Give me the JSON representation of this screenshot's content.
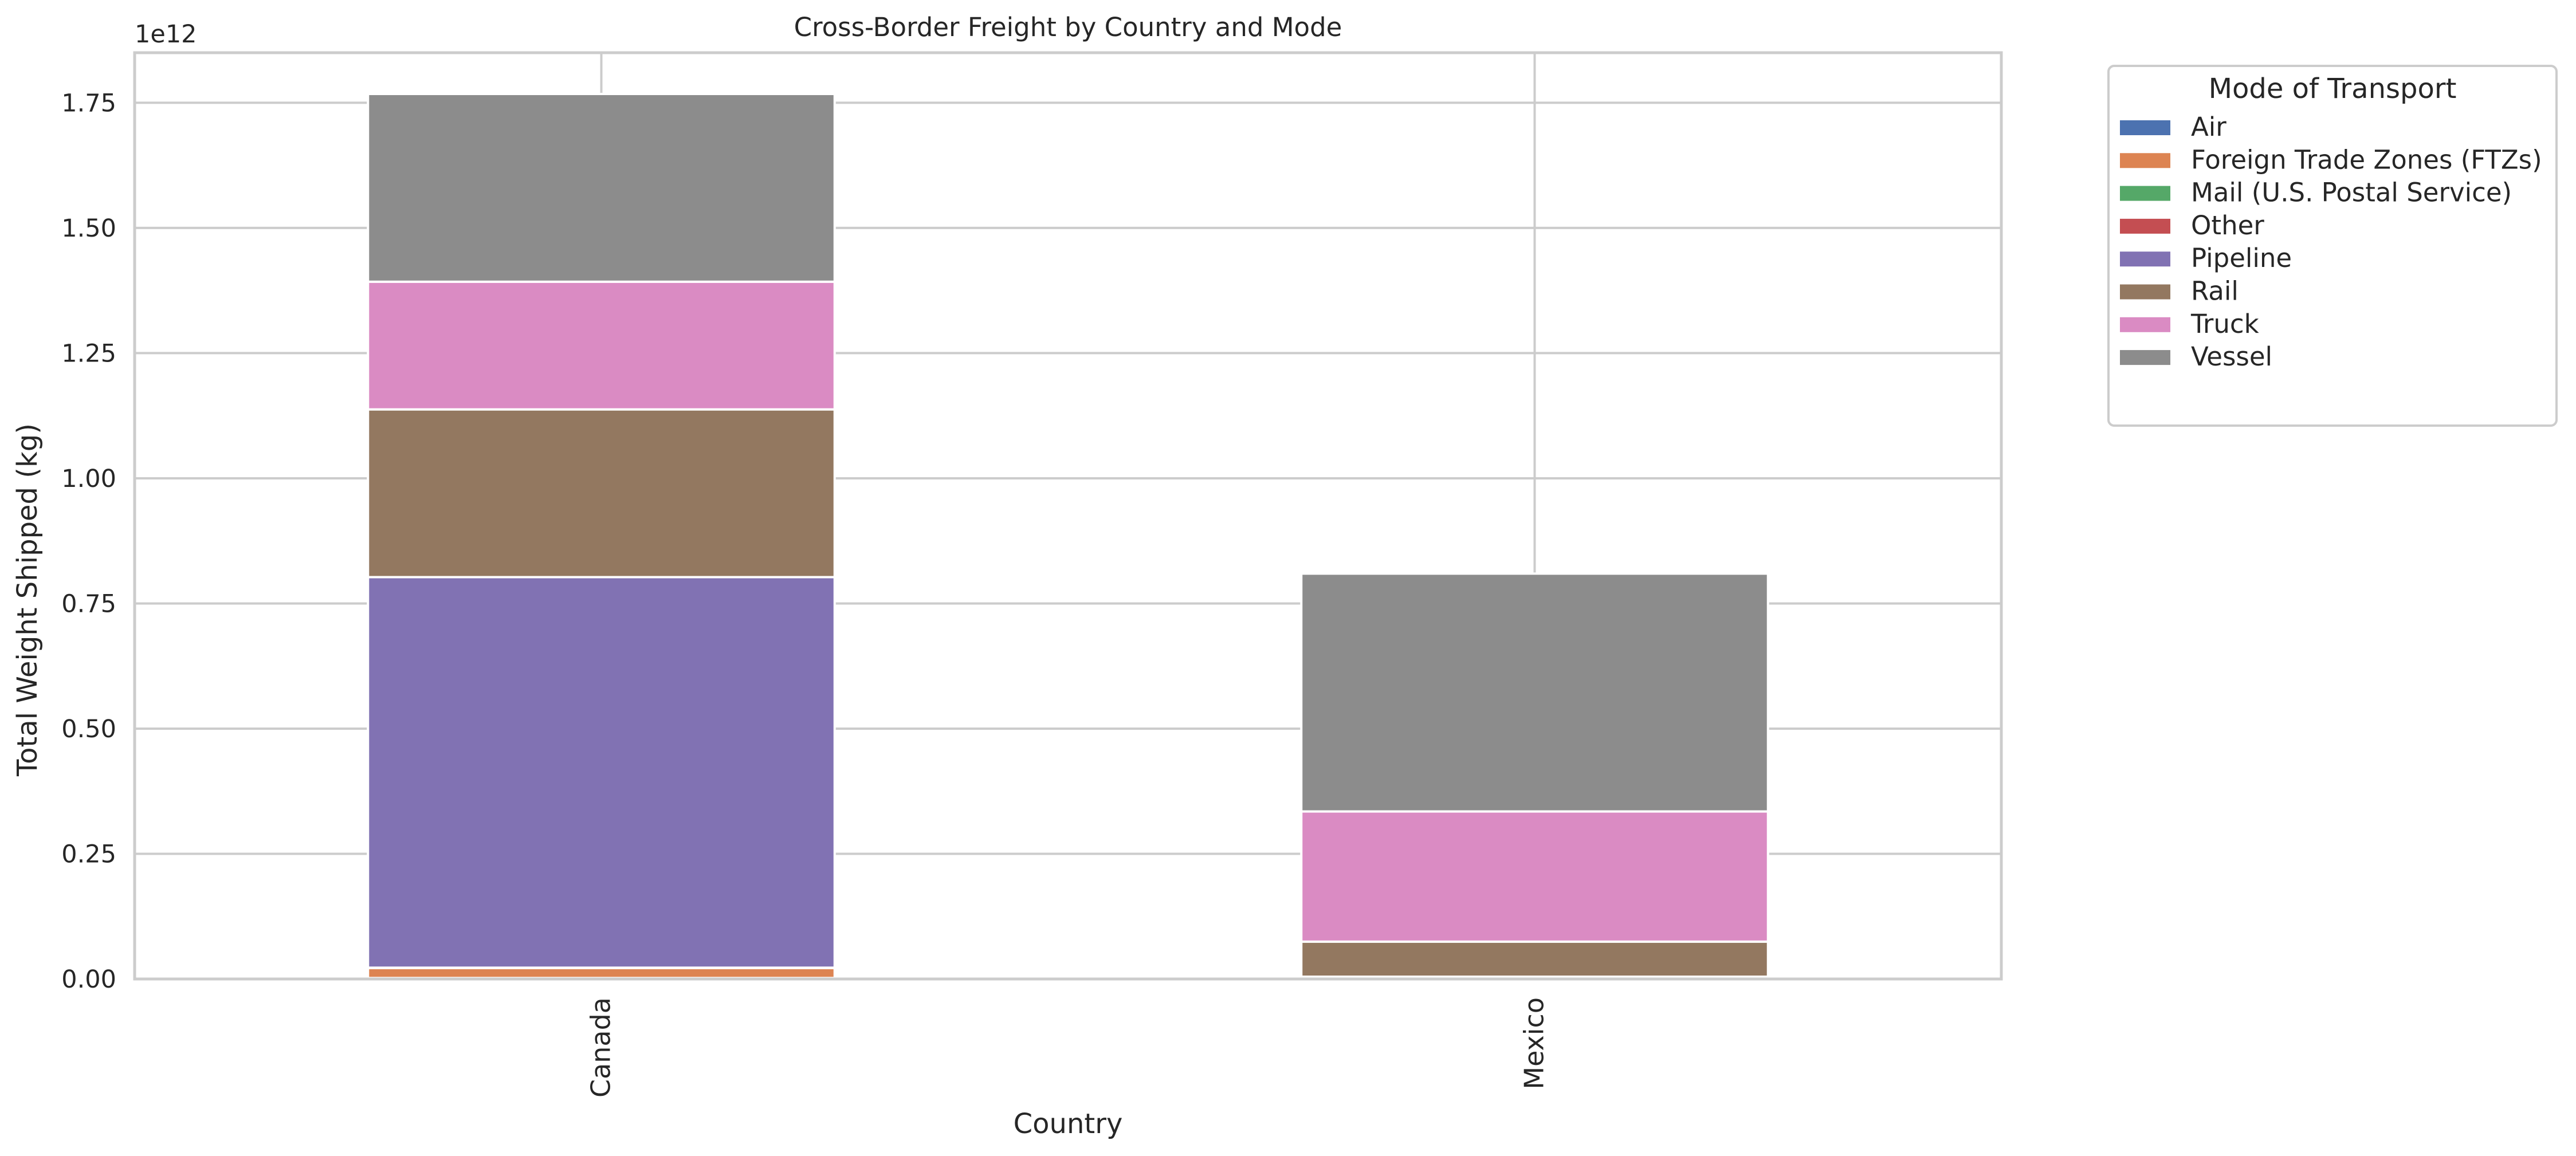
{
  "chart_data": {
    "type": "bar",
    "stacked": true,
    "title": "Cross-Border Freight by Country and Mode",
    "xlabel": "Country",
    "ylabel": "Total Weight Shipped (kg)",
    "y_offset_text": "1e12",
    "ylim": [
      0,
      1850000000000.0
    ],
    "y_ticks": [
      0,
      250000000000.0,
      500000000000.0,
      750000000000.0,
      1000000000000.0,
      1250000000000.0,
      1500000000000.0,
      1750000000000.0
    ],
    "y_tick_labels": [
      "0.00",
      "0.25",
      "0.50",
      "0.75",
      "1.00",
      "1.25",
      "1.50",
      "1.75"
    ],
    "categories": [
      "Canada",
      "Mexico"
    ],
    "grid": true,
    "legend": {
      "title": "Mode of Transport",
      "placement": "outside-upper-right"
    },
    "series": [
      {
        "name": "Air",
        "color": "#4c72b0",
        "values": [
          2000000000,
          1000000000
        ]
      },
      {
        "name": "Foreign Trade Zones (FTZs)",
        "color": "#dd8452",
        "values": [
          20000000000,
          3000000000
        ]
      },
      {
        "name": "Mail (U.S. Postal Service)",
        "color": "#55a868",
        "values": [
          100000000,
          100000000
        ]
      },
      {
        "name": "Other",
        "color": "#c44e52",
        "values": [
          500000000,
          500000000
        ]
      },
      {
        "name": "Pipeline",
        "color": "#8172b3",
        "values": [
          780000000000,
          0
        ]
      },
      {
        "name": "Rail",
        "color": "#937860",
        "values": [
          335000000000,
          70000000000
        ]
      },
      {
        "name": "Truck",
        "color": "#da8bc3",
        "values": [
          255000000000,
          260000000000
        ]
      },
      {
        "name": "Vessel",
        "color": "#8c8c8c",
        "values": [
          375000000000,
          475000000000
        ]
      }
    ]
  }
}
